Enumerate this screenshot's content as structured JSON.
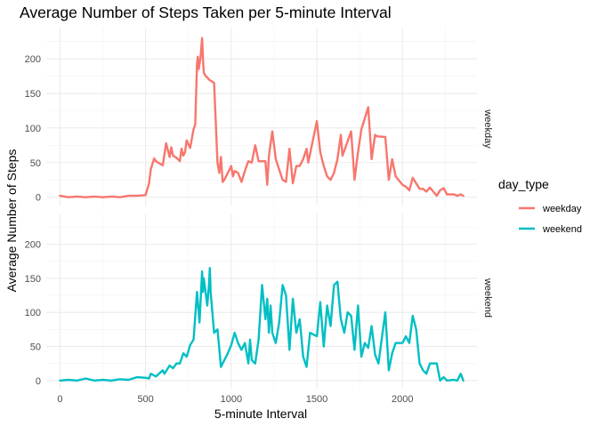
{
  "chart_data": {
    "type": "line",
    "title": "Average Number of Steps Taken per 5-minute Interval",
    "xlabel": "5-minute Interval",
    "ylabel": "Average Number of Steps",
    "xlim": [
      -80,
      2435
    ],
    "ylim": [
      -12,
      245
    ],
    "x_ticks": [
      0,
      500,
      1000,
      1500,
      2000
    ],
    "y_ticks": [
      0,
      50,
      100,
      150,
      200
    ],
    "grid": true,
    "legend": {
      "title": "day_type",
      "placement": "right"
    },
    "facets": [
      "weekday",
      "weekend"
    ],
    "series": [
      {
        "name": "weekday",
        "color": "#F8766D",
        "x": [
          0,
          50,
          100,
          150,
          200,
          250,
          300,
          350,
          400,
          450,
          500,
          520,
          530,
          550,
          560,
          600,
          610,
          620,
          640,
          650,
          660,
          680,
          700,
          710,
          720,
          730,
          740,
          760,
          780,
          790,
          800,
          805,
          810,
          820,
          830,
          835,
          840,
          850,
          860,
          870,
          900,
          920,
          930,
          940,
          950,
          960,
          980,
          1000,
          1010,
          1020,
          1040,
          1060,
          1080,
          1100,
          1120,
          1140,
          1160,
          1200,
          1210,
          1220,
          1240,
          1260,
          1280,
          1300,
          1320,
          1340,
          1360,
          1380,
          1400,
          1420,
          1440,
          1450,
          1500,
          1520,
          1540,
          1560,
          1580,
          1600,
          1620,
          1640,
          1650,
          1700,
          1720,
          1740,
          1760,
          1800,
          1820,
          1840,
          1850,
          1900,
          1920,
          1940,
          1960,
          2000,
          2020,
          2040,
          2060,
          2100,
          2120,
          2140,
          2160,
          2200,
          2220,
          2240,
          2260,
          2300,
          2320,
          2340,
          2355
        ],
        "values": [
          2,
          0,
          1,
          0,
          1,
          0,
          1,
          0,
          2,
          2,
          3,
          20,
          40,
          56,
          52,
          46,
          62,
          78,
          58,
          72,
          60,
          57,
          52,
          70,
          60,
          65,
          82,
          71,
          98,
          105,
          193,
          203,
          185,
          200,
          230,
          200,
          180,
          175,
          173,
          170,
          165,
          50,
          35,
          58,
          22,
          25,
          35,
          45,
          30,
          38,
          35,
          22,
          38,
          52,
          50,
          75,
          52,
          52,
          18,
          60,
          95,
          55,
          40,
          25,
          22,
          70,
          20,
          45,
          45,
          55,
          70,
          50,
          110,
          65,
          45,
          30,
          25,
          35,
          55,
          90,
          60,
          95,
          25,
          65,
          98,
          130,
          55,
          90,
          88,
          87,
          25,
          55,
          30,
          18,
          15,
          10,
          28,
          12,
          12,
          8,
          14,
          2,
          10,
          13,
          4,
          4,
          2,
          4,
          2
        ]
      },
      {
        "name": "weekend",
        "color": "#00BFC4",
        "x": [
          0,
          50,
          100,
          150,
          200,
          250,
          300,
          350,
          400,
          450,
          500,
          520,
          530,
          560,
          600,
          610,
          640,
          660,
          680,
          700,
          720,
          740,
          760,
          780,
          800,
          810,
          815,
          830,
          835,
          840,
          850,
          860,
          870,
          875,
          880,
          900,
          920,
          940,
          960,
          980,
          1000,
          1020,
          1040,
          1060,
          1080,
          1100,
          1110,
          1120,
          1140,
          1160,
          1180,
          1200,
          1210,
          1220,
          1230,
          1240,
          1260,
          1280,
          1300,
          1320,
          1340,
          1360,
          1380,
          1400,
          1420,
          1440,
          1460,
          1500,
          1520,
          1540,
          1560,
          1580,
          1600,
          1620,
          1640,
          1660,
          1680,
          1700,
          1720,
          1740,
          1760,
          1780,
          1800,
          1820,
          1840,
          1860,
          1900,
          1920,
          1940,
          1960,
          2000,
          2020,
          2040,
          2060,
          2080,
          2100,
          2120,
          2140,
          2160,
          2200,
          2220,
          2240,
          2260,
          2300,
          2320,
          2340,
          2355
        ],
        "values": [
          0,
          1,
          0,
          3,
          0,
          1,
          0,
          2,
          1,
          5,
          4,
          3,
          10,
          6,
          15,
          10,
          22,
          18,
          25,
          25,
          40,
          35,
          52,
          60,
          130,
          100,
          85,
          160,
          130,
          150,
          130,
          110,
          140,
          165,
          130,
          70,
          75,
          20,
          30,
          40,
          52,
          70,
          55,
          45,
          55,
          25,
          60,
          30,
          25,
          60,
          140,
          90,
          120,
          70,
          110,
          70,
          55,
          85,
          140,
          125,
          45,
          120,
          70,
          90,
          35,
          20,
          70,
          65,
          115,
          50,
          110,
          80,
          140,
          145,
          90,
          70,
          100,
          95,
          45,
          110,
          35,
          55,
          48,
          80,
          38,
          25,
          100,
          15,
          40,
          55,
          55,
          65,
          55,
          95,
          75,
          25,
          15,
          10,
          25,
          25,
          0,
          5,
          0,
          1,
          0,
          10,
          0
        ]
      }
    ]
  }
}
